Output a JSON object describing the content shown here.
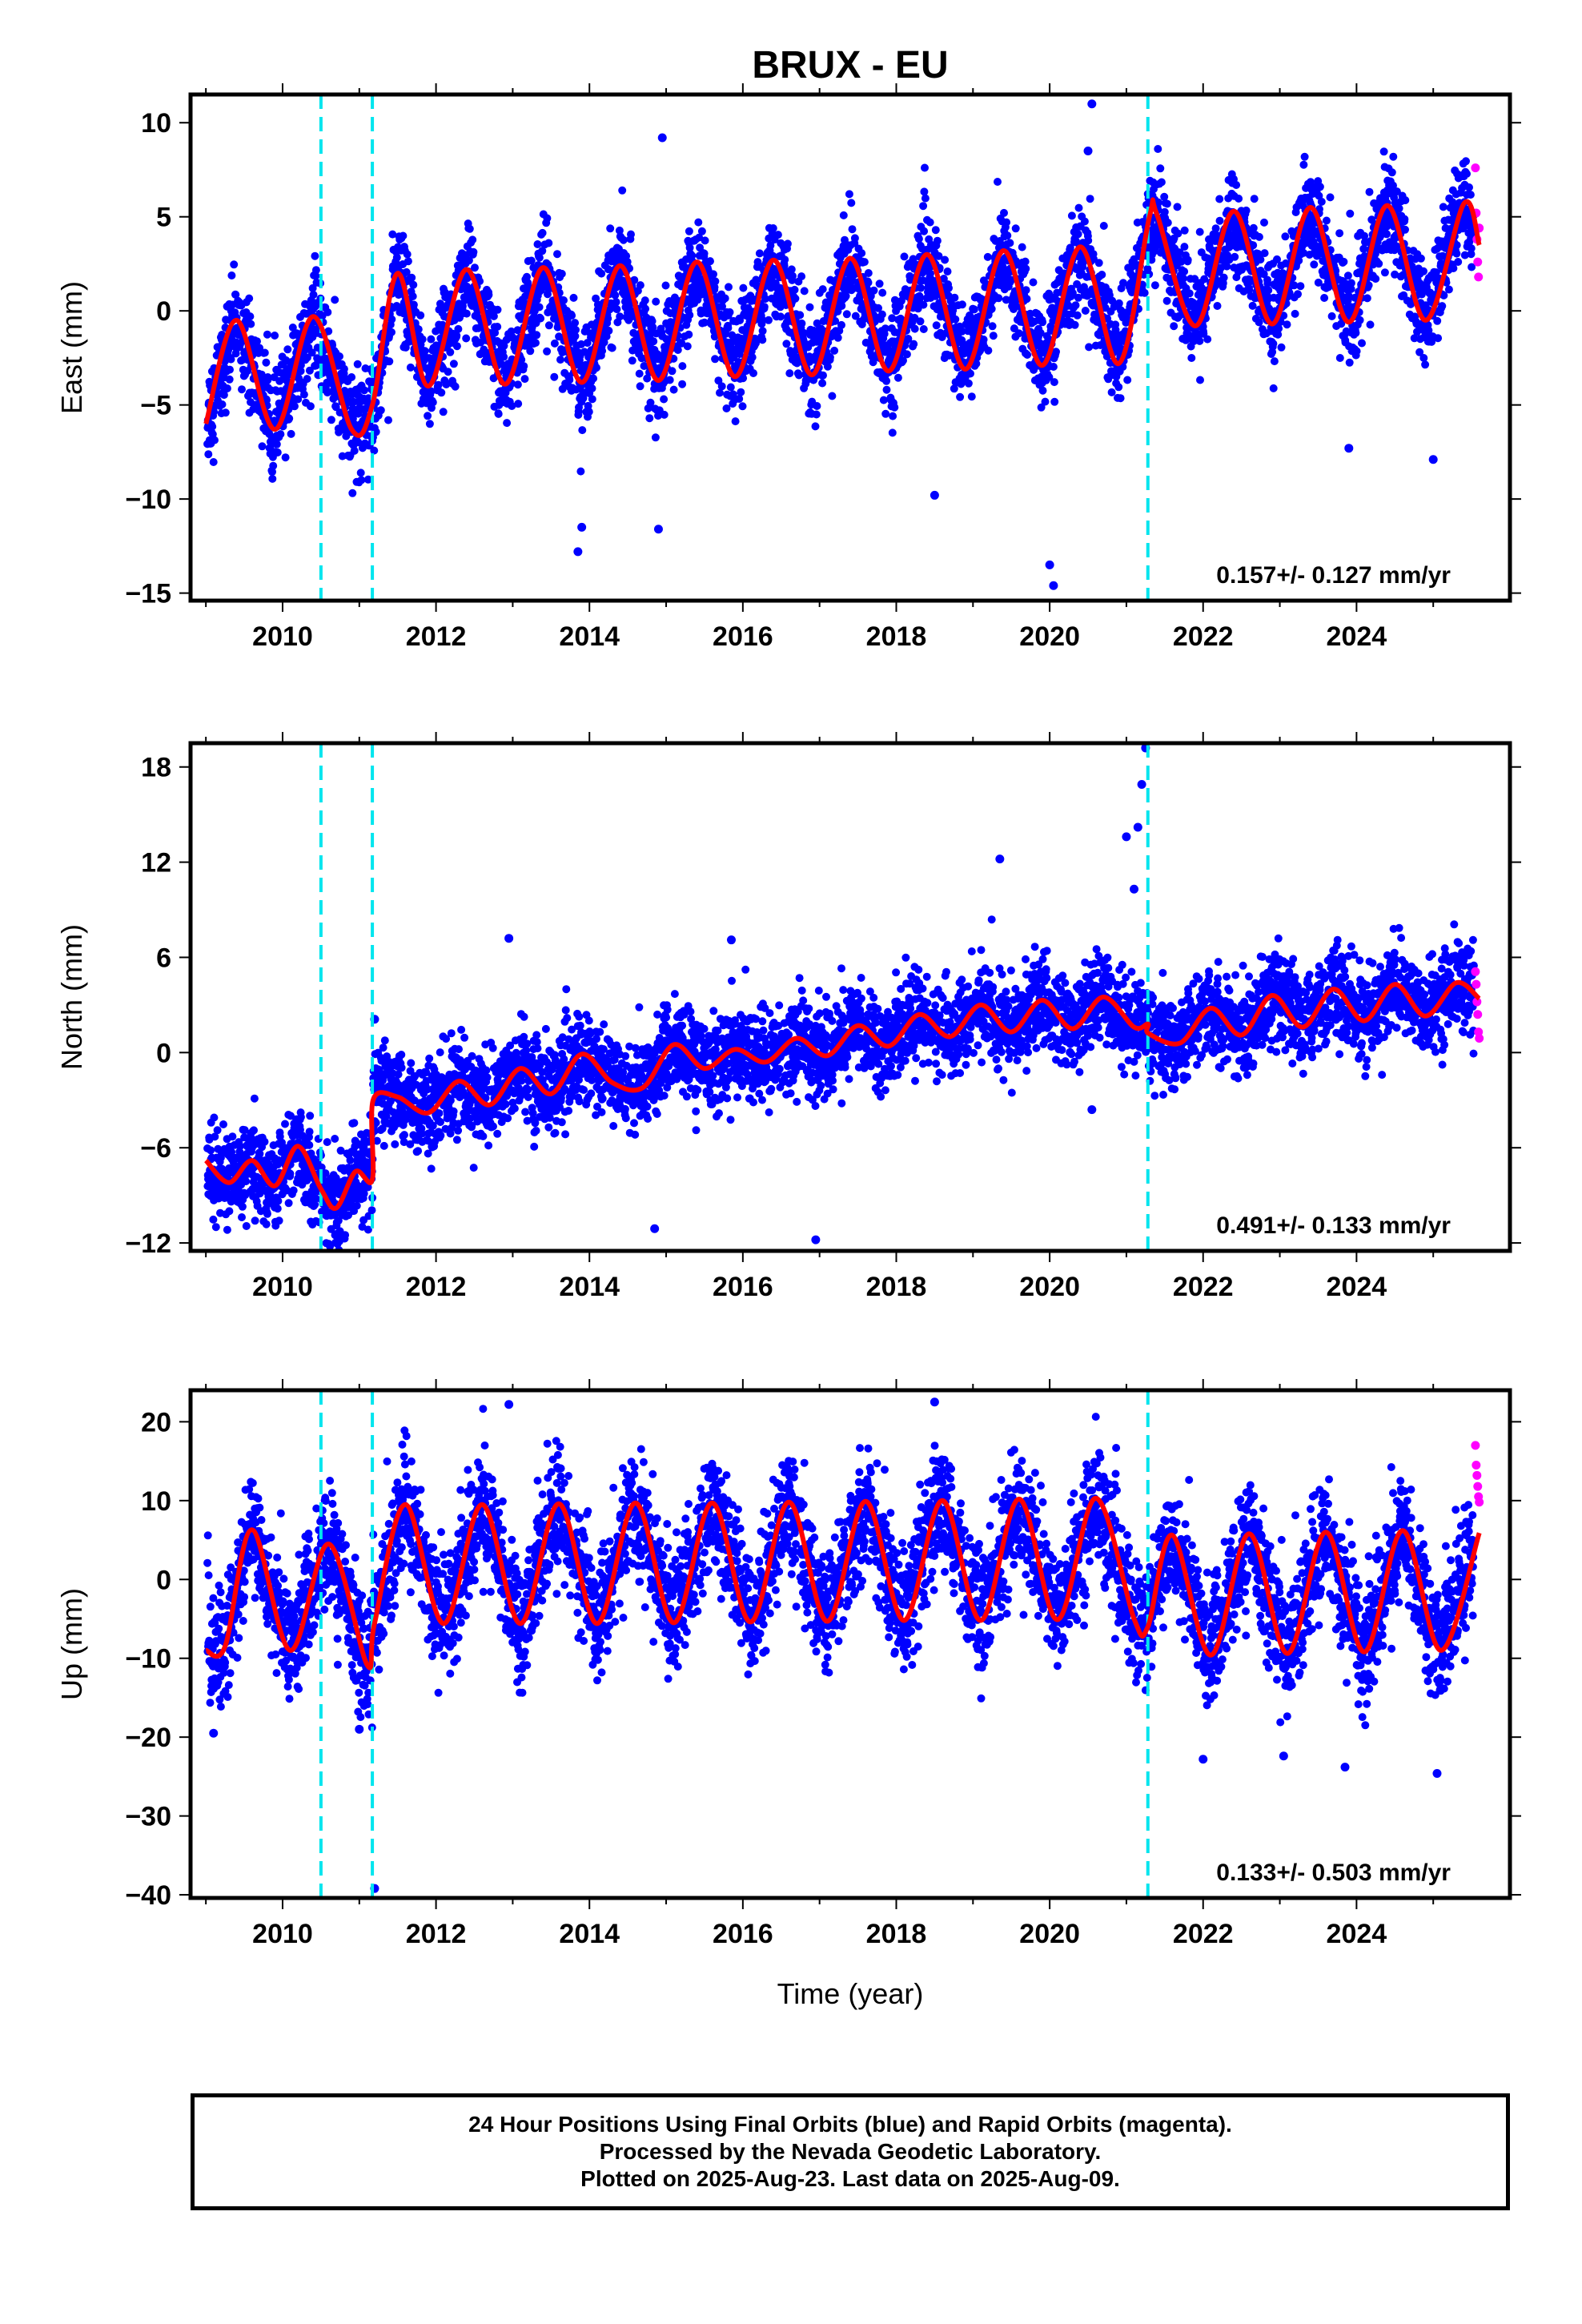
{
  "chart_data": {
    "title": "BRUX - EU",
    "xlabel": "Time (year)",
    "x_ticks": [
      "2010",
      "2012",
      "2014",
      "2016",
      "2018",
      "2020",
      "2022",
      "2024"
    ],
    "xlim": [
      2008.8,
      2026.0
    ],
    "offset_lines": [
      2010.5,
      2011.17,
      2021.28
    ],
    "colors": {
      "final": "#0000ff",
      "rapid": "#ff00ff",
      "model": "#ff0000",
      "offset": "#00e5ee"
    },
    "panels": [
      {
        "type": "scatter",
        "ylabel": "East (mm)",
        "ylim": [
          -15.4,
          11.5
        ],
        "y_ticks": [
          10,
          5,
          0,
          -5,
          -10,
          -15
        ],
        "y_tick_labels": [
          "10",
          "5",
          "0",
          "−5",
          "−10",
          "−15"
        ],
        "rate_label": "0.157+/- 0.127 mm/yr",
        "model": {
          "x": [
            2009.0,
            2009.4,
            2009.9,
            2010.4,
            2010.9,
            2011.17,
            2011.5,
            2011.9,
            2012.4,
            2012.9,
            2013.4,
            2013.9,
            2014.4,
            2014.9,
            2015.4,
            2015.9,
            2016.4,
            2016.9,
            2017.4,
            2017.9,
            2018.4,
            2018.9,
            2019.4,
            2019.9,
            2020.4,
            2020.9,
            2021.3,
            2021.4,
            2021.9,
            2022.4,
            2022.9,
            2023.4,
            2023.9,
            2024.4,
            2024.9,
            2025.4,
            2025.6
          ],
          "y": [
            -6.0,
            -0.5,
            -6.3,
            -0.3,
            -6.3,
            -5.0,
            2.0,
            -4.0,
            2.2,
            -3.9,
            2.3,
            -3.8,
            2.4,
            -3.7,
            2.6,
            -3.5,
            2.7,
            -3.4,
            2.8,
            -3.2,
            3.0,
            -3.1,
            3.2,
            -2.9,
            3.4,
            -2.8,
            5.0,
            5.1,
            -0.8,
            5.3,
            -0.7,
            5.5,
            -0.6,
            5.6,
            -0.5,
            5.7,
            3.5
          ]
        },
        "rapid": {
          "x": [
            2025.55,
            2025.56,
            2025.57,
            2025.58,
            2025.59,
            2025.6
          ],
          "y": [
            7.6,
            5.2,
            3.8,
            2.6,
            1.8,
            4.4
          ]
        },
        "outliers": {
          "x": [
            2014.95,
            2020.55,
            2020.5,
            2020.0,
            2020.05,
            2013.85,
            2013.9,
            2014.9,
            2023.9,
            2025.0,
            2018.5
          ],
          "y": [
            9.2,
            11.0,
            8.5,
            -13.5,
            -14.6,
            -12.8,
            -11.5,
            -11.6,
            -7.3,
            -7.9,
            -9.8
          ]
        }
      },
      {
        "type": "scatter",
        "ylabel": "North (mm)",
        "ylim": [
          -12.5,
          19.5
        ],
        "y_ticks": [
          18,
          12,
          6,
          0,
          -6,
          -12
        ],
        "y_tick_labels": [
          "18",
          "12",
          "6",
          "0",
          "−6",
          "−12"
        ],
        "rate_label": "0.491+/- 0.133 mm/yr",
        "model": {
          "x": [
            2009.0,
            2009.3,
            2009.6,
            2009.9,
            2010.2,
            2010.5,
            2010.7,
            2010.95,
            2011.17,
            2011.18,
            2011.5,
            2011.9,
            2012.3,
            2012.7,
            2013.1,
            2013.5,
            2013.9,
            2014.3,
            2014.7,
            2015.1,
            2015.5,
            2015.9,
            2016.3,
            2016.7,
            2017.1,
            2017.5,
            2017.9,
            2018.3,
            2018.7,
            2019.1,
            2019.5,
            2019.9,
            2020.3,
            2020.7,
            2021.1,
            2021.28,
            2021.29,
            2021.7,
            2022.1,
            2022.5,
            2022.9,
            2023.3,
            2023.7,
            2024.1,
            2024.5,
            2024.9,
            2025.3,
            2025.6
          ],
          "y": [
            -6.8,
            -8.2,
            -6.8,
            -8.4,
            -5.9,
            -8.6,
            -9.8,
            -7.5,
            -8.0,
            -3.0,
            -2.8,
            -3.8,
            -1.8,
            -3.3,
            -1.0,
            -2.6,
            -0.1,
            -1.9,
            -2.2,
            0.5,
            -1.0,
            0.2,
            -0.6,
            0.9,
            -0.2,
            1.7,
            0.4,
            2.4,
            1.0,
            3.0,
            1.3,
            3.3,
            1.5,
            3.5,
            1.6,
            1.8,
            1.2,
            0.6,
            2.8,
            1.1,
            3.6,
            1.6,
            4.0,
            2.0,
            4.3,
            2.3,
            4.4,
            3.4
          ]
        },
        "rapid": {
          "x": [
            2025.55,
            2025.56,
            2025.57,
            2025.58,
            2025.59,
            2025.6
          ],
          "y": [
            5.1,
            4.3,
            3.2,
            2.4,
            1.3,
            0.9
          ]
        },
        "outliers": {
          "x": [
            2021.0,
            2021.1,
            2021.15,
            2021.2,
            2021.25,
            2019.35,
            2012.95,
            2015.85,
            2014.85,
            2016.95,
            2020.55,
            2011.2
          ],
          "y": [
            13.6,
            10.3,
            14.2,
            16.9,
            19.2,
            12.2,
            7.2,
            7.1,
            -11.1,
            -11.8,
            -3.6,
            2.1
          ]
        }
      },
      {
        "type": "scatter",
        "ylabel": "Up (mm)",
        "ylim": [
          -40.4,
          24.0
        ],
        "y_ticks": [
          20,
          10,
          0,
          -10,
          -20,
          -30,
          -40
        ],
        "y_tick_labels": [
          "20",
          "10",
          "0",
          "−10",
          "−20",
          "−30",
          "−40"
        ],
        "rate_label": "0.133+/- 0.503 mm/yr",
        "model": {
          "x": [
            2009.0,
            2009.25,
            2009.6,
            2010.1,
            2010.6,
            2011.1,
            2011.2,
            2011.6,
            2012.1,
            2012.6,
            2013.1,
            2013.6,
            2014.1,
            2014.6,
            2015.1,
            2015.6,
            2016.1,
            2016.6,
            2017.1,
            2017.6,
            2018.1,
            2018.6,
            2019.1,
            2019.6,
            2020.1,
            2020.6,
            2021.1,
            2021.28,
            2021.6,
            2022.1,
            2022.6,
            2023.1,
            2023.6,
            2024.1,
            2024.6,
            2025.1,
            2025.6
          ],
          "y": [
            -9.0,
            -8.5,
            6.3,
            -9.0,
            4.5,
            -10.8,
            -5.5,
            9.5,
            -5.6,
            9.5,
            -5.6,
            9.6,
            -5.6,
            9.7,
            -5.5,
            9.7,
            -5.4,
            9.8,
            -5.3,
            9.9,
            -5.2,
            10.0,
            -5.2,
            10.2,
            -5.1,
            10.3,
            -5.0,
            -6.0,
            5.6,
            -9.6,
            5.8,
            -9.4,
            6.0,
            -9.2,
            6.2,
            -9.0,
            5.9
          ]
        },
        "rapid": {
          "x": [
            2025.55,
            2025.56,
            2025.57,
            2025.58,
            2025.59,
            2025.6
          ],
          "y": [
            17.0,
            14.5,
            13.2,
            11.8,
            10.5,
            9.8
          ]
        },
        "outliers": {
          "x": [
            2011.2,
            2012.95,
            2018.5,
            2023.85,
            2025.05,
            2022.0,
            2023.05,
            2011.0,
            2009.1
          ],
          "y": [
            -39.2,
            22.2,
            22.5,
            -23.8,
            -24.6,
            -22.8,
            -22.4,
            -19.0,
            -19.5
          ]
        }
      }
    ]
  },
  "footer": {
    "line1": "24 Hour Positions Using Final Orbits (blue) and Rapid Orbits (magenta).",
    "line2": "Processed by the Nevada Geodetic Laboratory.",
    "line3": "Plotted on 2025-Aug-23. Last data on 2025-Aug-09."
  }
}
